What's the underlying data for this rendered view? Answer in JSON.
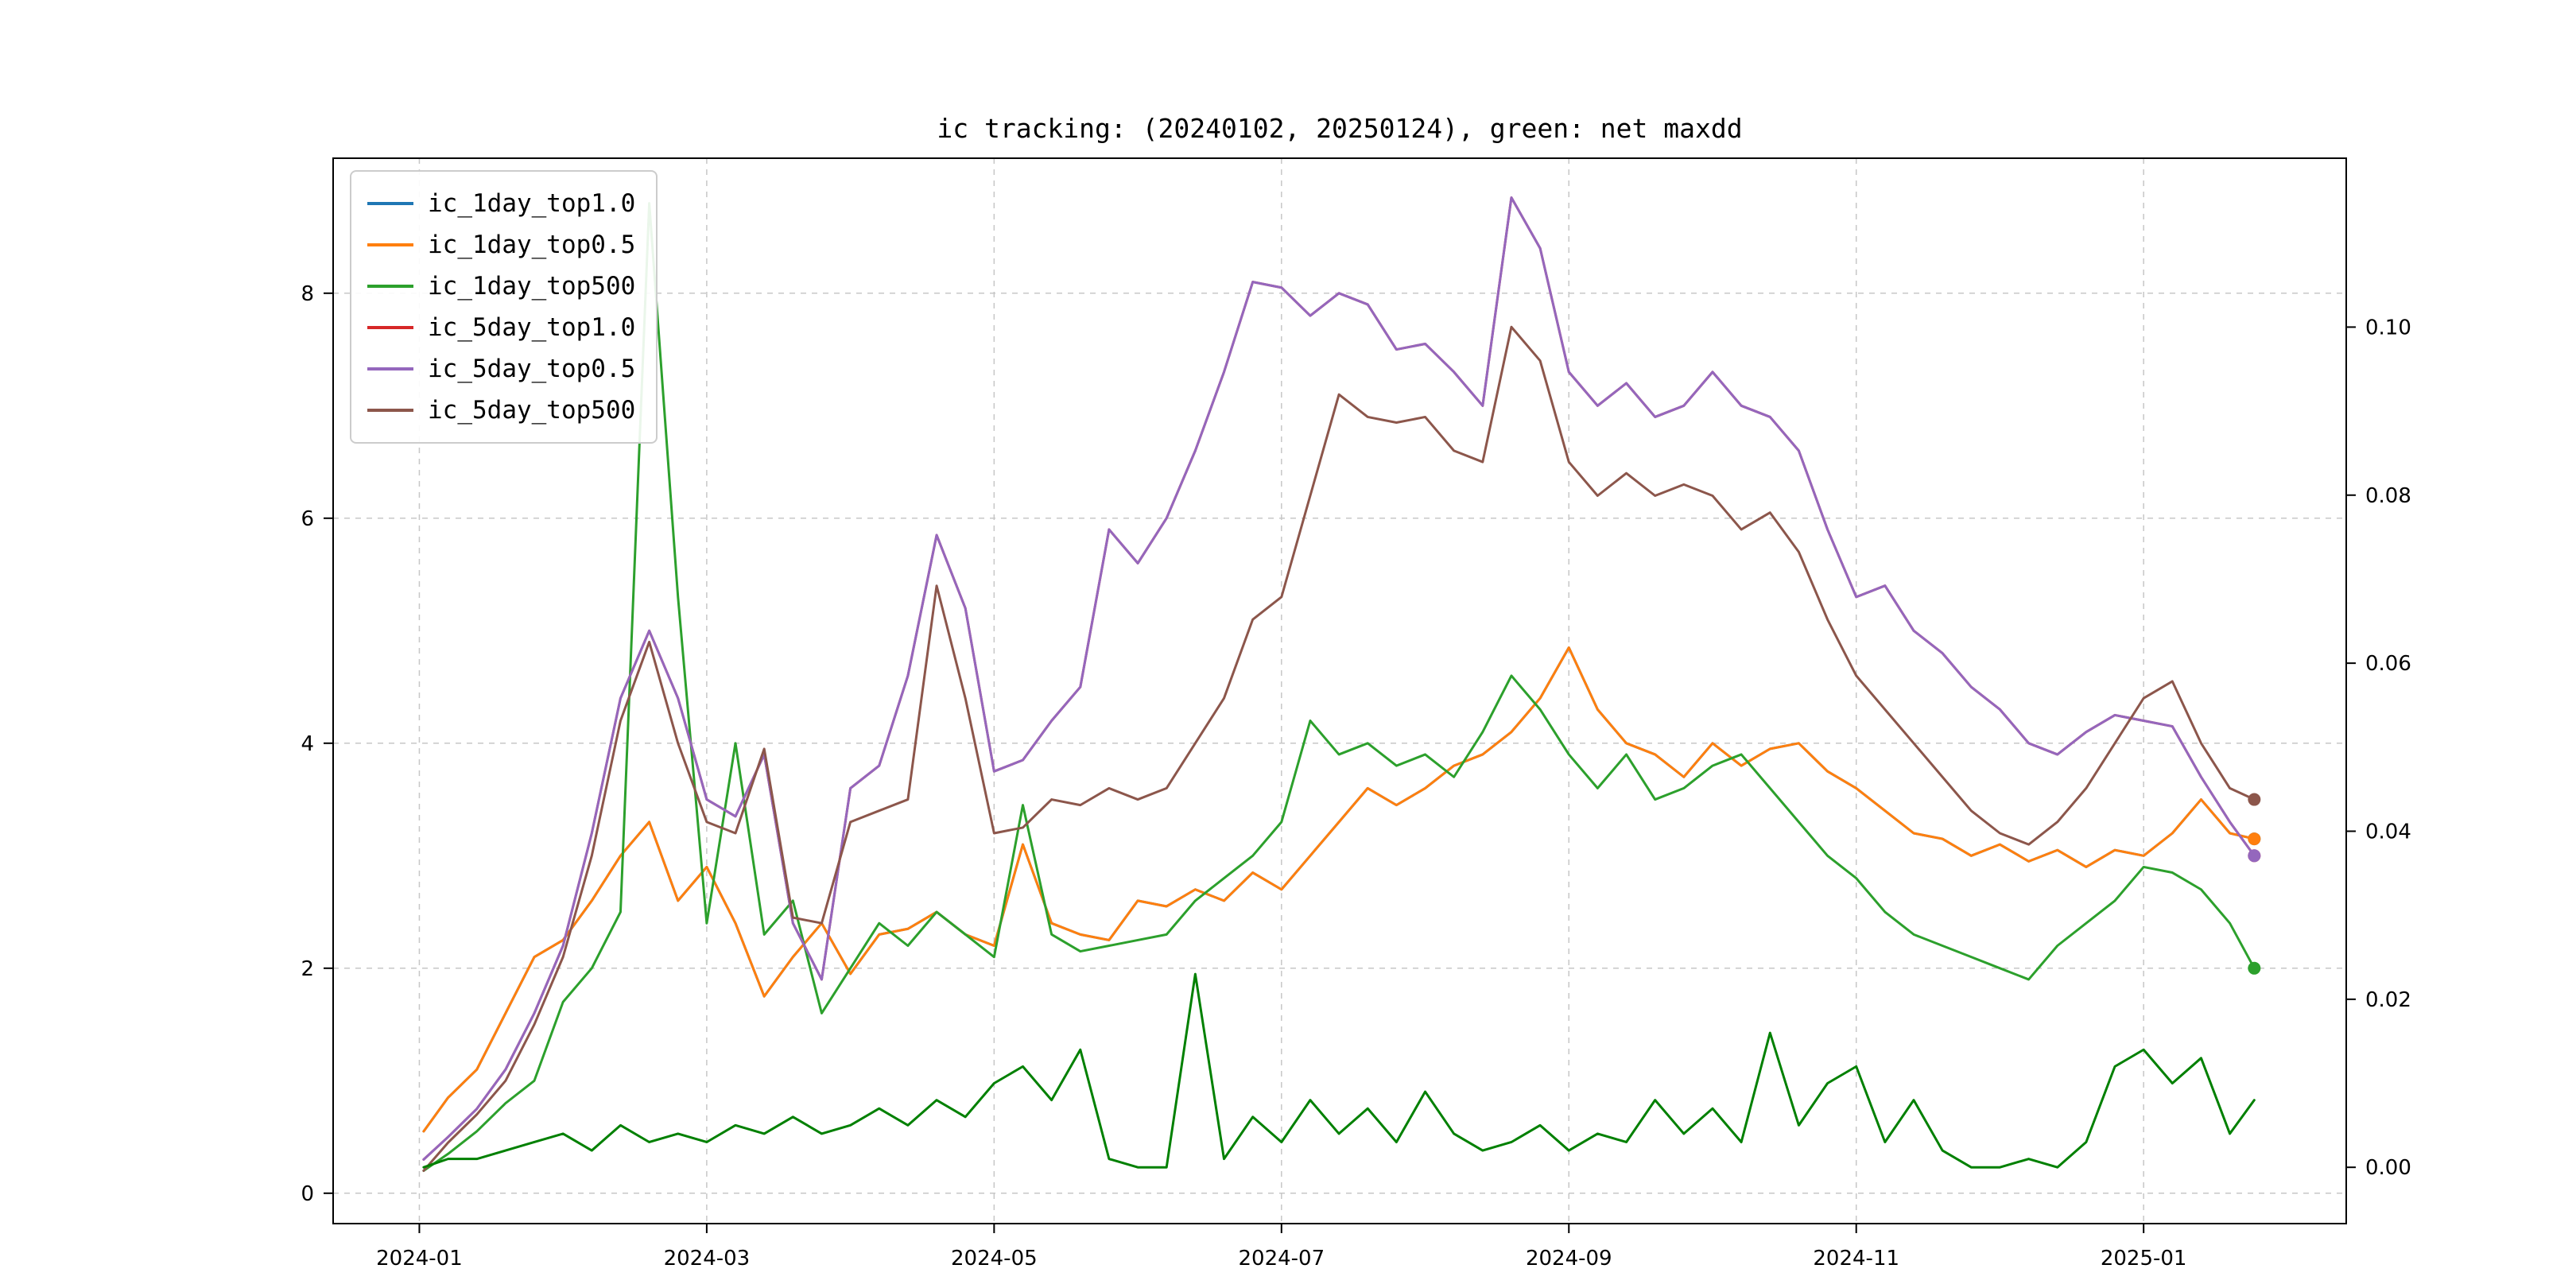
{
  "title": "ic tracking: (20240102, 20250124), green: net maxdd",
  "chart_data": {
    "type": "line",
    "title": "ic tracking: (20240102, 20250124), green: net maxdd",
    "grid": true,
    "legend_position": "upper-left",
    "x_unit": "months since 2024-01-01",
    "xlim": [
      -0.6,
      13.41
    ],
    "left_axis": {
      "ticks": [
        "0",
        "2",
        "4",
        "6",
        "8"
      ],
      "tick_values": [
        0,
        2,
        4,
        6,
        8
      ],
      "lim": [
        -0.27,
        9.2
      ]
    },
    "right_axis": {
      "ticks": [
        "0.00",
        "0.02",
        "0.04",
        "0.06",
        "0.08",
        "0.10"
      ],
      "tick_values": [
        0.0,
        0.02,
        0.04,
        0.06,
        0.08,
        0.1
      ],
      "lim": [
        -0.0067,
        0.1201
      ]
    },
    "x_ticks": [
      {
        "label": "2024-01",
        "x": 0
      },
      {
        "label": "2024-03",
        "x": 2
      },
      {
        "label": "2024-05",
        "x": 4
      },
      {
        "label": "2024-07",
        "x": 6
      },
      {
        "label": "2024-09",
        "x": 8
      },
      {
        "label": "2024-11",
        "x": 10
      },
      {
        "label": "2025-01",
        "x": 12
      }
    ],
    "x": [
      0.03,
      0.2,
      0.4,
      0.6,
      0.8,
      1.0,
      1.2,
      1.4,
      1.6,
      1.8,
      2.0,
      2.2,
      2.4,
      2.6,
      2.8,
      3.0,
      3.2,
      3.4,
      3.6,
      3.8,
      4.0,
      4.2,
      4.4,
      4.6,
      4.8,
      5.0,
      5.2,
      5.4,
      5.6,
      5.8,
      6.0,
      6.2,
      6.4,
      6.6,
      6.8,
      7.0,
      7.2,
      7.4,
      7.6,
      7.8,
      8.0,
      8.2,
      8.4,
      8.6,
      8.8,
      9.0,
      9.2,
      9.4,
      9.6,
      9.8,
      10.0,
      10.2,
      10.4,
      10.6,
      10.8,
      11.0,
      11.2,
      11.4,
      11.6,
      11.8,
      12.0,
      12.2,
      12.4,
      12.6,
      12.77
    ],
    "series": [
      {
        "name": "ic_1day_top1.0",
        "color": "#1f77b4",
        "axis": "left",
        "end_dot": true,
        "in_legend": true,
        "values": [
          0.55,
          0.85,
          1.1,
          1.6,
          2.1,
          2.25,
          2.6,
          3.0,
          3.3,
          2.6,
          2.9,
          2.4,
          1.75,
          2.1,
          2.4,
          1.95,
          2.3,
          2.35,
          2.5,
          2.3,
          2.2,
          3.1,
          2.4,
          2.3,
          2.25,
          2.6,
          2.55,
          2.7,
          2.6,
          2.85,
          2.7,
          3.0,
          3.3,
          3.6,
          3.45,
          3.6,
          3.8,
          3.9,
          4.1,
          4.4,
          4.85,
          4.3,
          4.0,
          3.9,
          3.7,
          4.0,
          3.8,
          3.95,
          4.0,
          3.75,
          3.6,
          3.4,
          3.2,
          3.15,
          3.0,
          3.1,
          2.95,
          3.05,
          2.9,
          3.05,
          3.0,
          3.2,
          3.5,
          3.2,
          3.15
        ]
      },
      {
        "name": "ic_1day_top0.5",
        "color": "#ff7f0e",
        "axis": "left",
        "end_dot": true,
        "in_legend": true,
        "values": [
          0.55,
          0.85,
          1.1,
          1.6,
          2.1,
          2.25,
          2.6,
          3.0,
          3.3,
          2.6,
          2.9,
          2.4,
          1.75,
          2.1,
          2.4,
          1.95,
          2.3,
          2.35,
          2.5,
          2.3,
          2.2,
          3.1,
          2.4,
          2.3,
          2.25,
          2.6,
          2.55,
          2.7,
          2.6,
          2.85,
          2.7,
          3.0,
          3.3,
          3.6,
          3.45,
          3.6,
          3.8,
          3.9,
          4.1,
          4.4,
          4.85,
          4.3,
          4.0,
          3.9,
          3.7,
          4.0,
          3.8,
          3.95,
          4.0,
          3.75,
          3.6,
          3.4,
          3.2,
          3.15,
          3.0,
          3.1,
          2.95,
          3.05,
          2.9,
          3.05,
          3.0,
          3.2,
          3.5,
          3.2,
          3.15
        ]
      },
      {
        "name": "ic_1day_top500",
        "color": "#2ca02c",
        "axis": "left",
        "end_dot": true,
        "in_legend": true,
        "values": [
          0.2,
          0.35,
          0.55,
          0.8,
          1.0,
          1.7,
          2.0,
          2.5,
          8.8,
          5.3,
          2.4,
          4.0,
          2.3,
          2.6,
          1.6,
          2.0,
          2.4,
          2.2,
          2.5,
          2.3,
          2.1,
          3.45,
          2.3,
          2.15,
          2.2,
          2.25,
          2.3,
          2.6,
          2.8,
          3.0,
          3.3,
          4.2,
          3.9,
          4.0,
          3.8,
          3.9,
          3.7,
          4.1,
          4.6,
          4.3,
          3.9,
          3.6,
          3.9,
          3.5,
          3.6,
          3.8,
          3.9,
          3.6,
          3.3,
          3.0,
          2.8,
          2.5,
          2.3,
          2.2,
          2.1,
          2.0,
          1.9,
          2.2,
          2.4,
          2.6,
          2.9,
          2.85,
          2.7,
          2.4,
          2.0
        ]
      },
      {
        "name": "ic_5day_top1.0",
        "color": "#d62728",
        "axis": "left",
        "end_dot": true,
        "in_legend": true,
        "values": [
          0.3,
          0.5,
          0.75,
          1.1,
          1.6,
          2.2,
          3.2,
          4.4,
          5.0,
          4.4,
          3.5,
          3.35,
          3.9,
          2.4,
          1.9,
          3.6,
          3.8,
          4.6,
          5.85,
          5.2,
          3.75,
          3.85,
          4.2,
          4.5,
          5.9,
          5.6,
          6.0,
          6.6,
          7.3,
          8.1,
          8.05,
          7.8,
          8.0,
          7.9,
          7.5,
          7.55,
          7.3,
          7.0,
          8.85,
          8.4,
          7.3,
          7.0,
          7.2,
          6.9,
          7.0,
          7.3,
          7.0,
          6.9,
          6.6,
          5.9,
          5.3,
          5.4,
          5.0,
          4.8,
          4.5,
          4.3,
          4.0,
          3.9,
          4.1,
          4.25,
          4.2,
          4.15,
          3.7,
          3.3,
          3.0
        ]
      },
      {
        "name": "ic_5day_top0.5",
        "color": "#9467bd",
        "axis": "left",
        "end_dot": true,
        "in_legend": true,
        "values": [
          0.3,
          0.5,
          0.75,
          1.1,
          1.6,
          2.2,
          3.2,
          4.4,
          5.0,
          4.4,
          3.5,
          3.35,
          3.9,
          2.4,
          1.9,
          3.6,
          3.8,
          4.6,
          5.85,
          5.2,
          3.75,
          3.85,
          4.2,
          4.5,
          5.9,
          5.6,
          6.0,
          6.6,
          7.3,
          8.1,
          8.05,
          7.8,
          8.0,
          7.9,
          7.5,
          7.55,
          7.3,
          7.0,
          8.85,
          8.4,
          7.3,
          7.0,
          7.2,
          6.9,
          7.0,
          7.3,
          7.0,
          6.9,
          6.6,
          5.9,
          5.3,
          5.4,
          5.0,
          4.8,
          4.5,
          4.3,
          4.0,
          3.9,
          4.1,
          4.25,
          4.2,
          4.15,
          3.7,
          3.3,
          3.0
        ]
      },
      {
        "name": "ic_5day_top500",
        "color": "#8c564b",
        "axis": "left",
        "end_dot": true,
        "in_legend": true,
        "values": [
          0.2,
          0.45,
          0.7,
          1.0,
          1.5,
          2.1,
          3.0,
          4.2,
          4.9,
          4.0,
          3.3,
          3.2,
          3.95,
          2.45,
          2.4,
          3.3,
          3.4,
          3.5,
          5.4,
          4.4,
          3.2,
          3.25,
          3.5,
          3.45,
          3.6,
          3.5,
          3.6,
          4.0,
          4.4,
          5.1,
          5.3,
          6.2,
          7.1,
          6.9,
          6.85,
          6.9,
          6.6,
          6.5,
          7.7,
          7.4,
          6.5,
          6.2,
          6.4,
          6.2,
          6.3,
          6.2,
          5.9,
          6.05,
          5.7,
          5.1,
          4.6,
          4.3,
          4.0,
          3.7,
          3.4,
          3.2,
          3.1,
          3.3,
          3.6,
          4.0,
          4.4,
          4.55,
          4.0,
          3.6,
          3.5
        ]
      },
      {
        "name": "net_maxdd",
        "color": "#008000",
        "axis": "right",
        "end_dot": false,
        "in_legend": false,
        "values": [
          0.0,
          0.001,
          0.001,
          0.002,
          0.003,
          0.004,
          0.002,
          0.005,
          0.003,
          0.004,
          0.003,
          0.005,
          0.004,
          0.006,
          0.004,
          0.005,
          0.007,
          0.005,
          0.008,
          0.006,
          0.01,
          0.012,
          0.008,
          0.014,
          0.001,
          0.0,
          0.0,
          0.023,
          0.001,
          0.006,
          0.003,
          0.008,
          0.004,
          0.007,
          0.003,
          0.009,
          0.004,
          0.002,
          0.003,
          0.005,
          0.002,
          0.004,
          0.003,
          0.008,
          0.004,
          0.007,
          0.003,
          0.016,
          0.005,
          0.01,
          0.012,
          0.003,
          0.008,
          0.002,
          0.0,
          0.0,
          0.001,
          0.0,
          0.003,
          0.012,
          0.014,
          0.01,
          0.013,
          0.004,
          0.008
        ]
      }
    ]
  }
}
